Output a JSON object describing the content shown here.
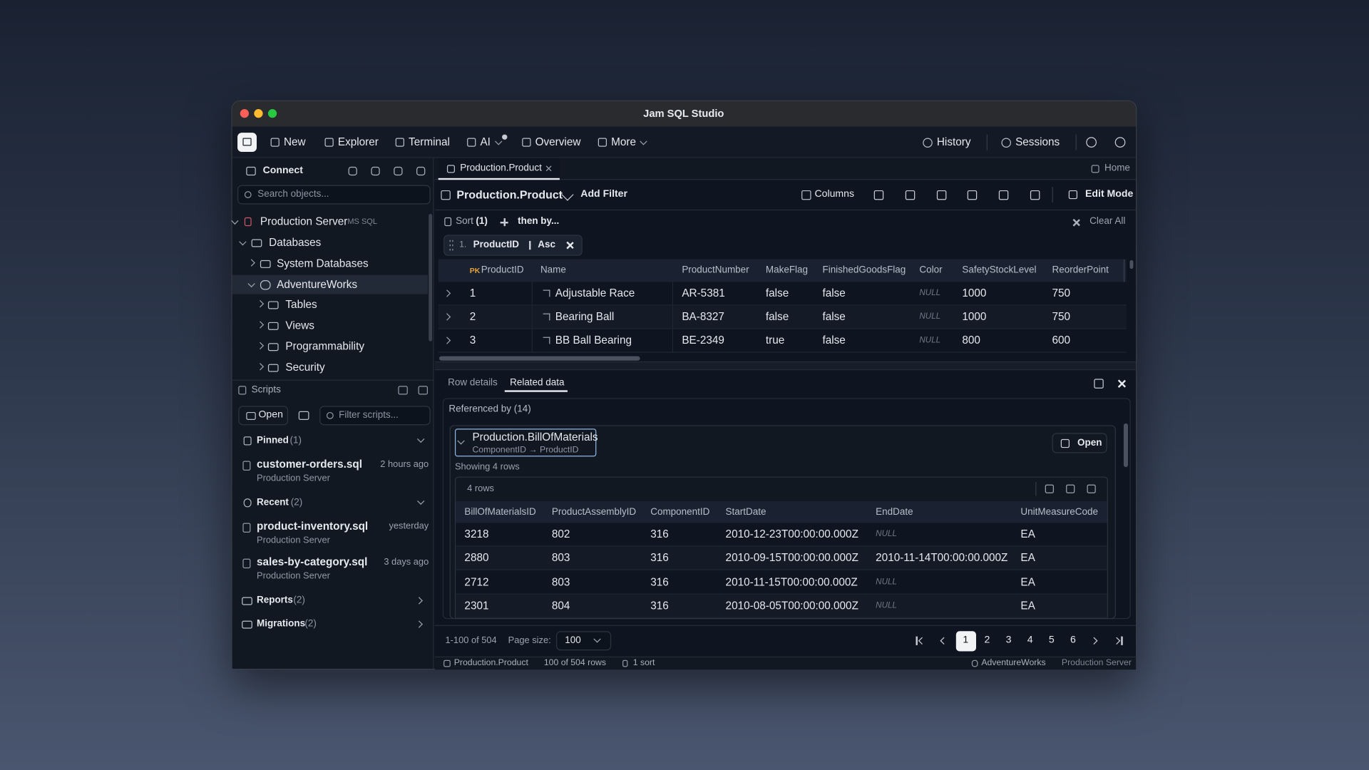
{
  "window": {
    "title": "Jam SQL Studio"
  },
  "toolbar": {
    "items": [
      "New",
      "Explorer",
      "Terminal",
      "AI",
      "Overview",
      "More"
    ],
    "right": [
      "History",
      "Sessions"
    ]
  },
  "sidebar": {
    "connect": "Connect",
    "search_placeholder": "Search objects...",
    "server": {
      "label": "Production Server",
      "tag": "MS SQL"
    },
    "tree": [
      "Databases",
      "System Databases",
      "AdventureWorks",
      "Tables",
      "Views",
      "Programmability",
      "Security"
    ]
  },
  "scripts": {
    "title": "Scripts",
    "open": "Open",
    "filter_placeholder": "Filter scripts...",
    "pinned": {
      "label": "Pinned",
      "count": "(1)",
      "items": [
        {
          "name": "customer-orders.sql",
          "server": "Production Server",
          "time": "2 hours ago"
        }
      ]
    },
    "recent": {
      "label": "Recent",
      "count": "(2)",
      "items": [
        {
          "name": "product-inventory.sql",
          "server": "Production Server",
          "time": "yesterday"
        },
        {
          "name": "sales-by-category.sql",
          "server": "Production Server",
          "time": "3 days ago"
        }
      ]
    },
    "folders": [
      {
        "label": "Reports",
        "count": "(2)"
      },
      {
        "label": "Migrations",
        "count": "(2)"
      }
    ]
  },
  "tab": {
    "title": "Production.Product",
    "home": "Home"
  },
  "query": {
    "title": "Production.Product",
    "add_filter": "Add Filter",
    "columns": "Columns",
    "edit_mode": "Edit Mode",
    "sort_label": "Sort",
    "sort_count": "(1)",
    "then_by": "then by...",
    "clear_all": "Clear All",
    "sort_chip": {
      "index": "1.",
      "column": "ProductID",
      "direction": "Asc"
    }
  },
  "grid": {
    "pk": "PK",
    "columns": [
      "ProductID",
      "Name",
      "ProductNumber",
      "MakeFlag",
      "FinishedGoodsFlag",
      "Color",
      "SafetyStockLevel",
      "ReorderPoint"
    ],
    "rows": [
      [
        1,
        "Adjustable Race",
        "AR-5381",
        "false",
        "false",
        "NULL",
        1000,
        750
      ],
      [
        2,
        "Bearing Ball",
        "BA-8327",
        "false",
        "false",
        "NULL",
        1000,
        750
      ],
      [
        3,
        "BB Ball Bearing",
        "BE-2349",
        "true",
        "false",
        "NULL",
        800,
        600
      ]
    ]
  },
  "details": {
    "tabs": [
      "Row details",
      "Related data"
    ],
    "referenced_by": "Referenced by (14)",
    "relation": {
      "title": "Production.BillOfMaterials",
      "subtitle": "ComponentID → ProductID",
      "open": "Open",
      "showing": "Showing 4 rows",
      "rows_count": "4 rows",
      "columns": [
        "BillOfMaterialsID",
        "ProductAssemblyID",
        "ComponentID",
        "StartDate",
        "EndDate",
        "UnitMeasureCode"
      ],
      "rows": [
        [
          3218,
          802,
          316,
          "2010-12-23T00:00:00.000Z",
          "NULL",
          "EA"
        ],
        [
          2880,
          803,
          316,
          "2010-09-15T00:00:00.000Z",
          "2010-11-14T00:00:00.000Z",
          "EA"
        ],
        [
          2712,
          803,
          316,
          "2010-11-15T00:00:00.000Z",
          "NULL",
          "EA"
        ],
        [
          2301,
          804,
          316,
          "2010-08-05T00:00:00.000Z",
          "NULL",
          "EA"
        ]
      ]
    }
  },
  "pagination": {
    "range": "1-100 of 504",
    "page_size_label": "Page size:",
    "page_size": 100,
    "pages": [
      1,
      2,
      3,
      4,
      5,
      6
    ]
  },
  "status": {
    "table": "Production.Product",
    "rows": "100 of 504 rows",
    "sorts": "1 sort",
    "database": "AdventureWorks",
    "server": "Production Server"
  }
}
